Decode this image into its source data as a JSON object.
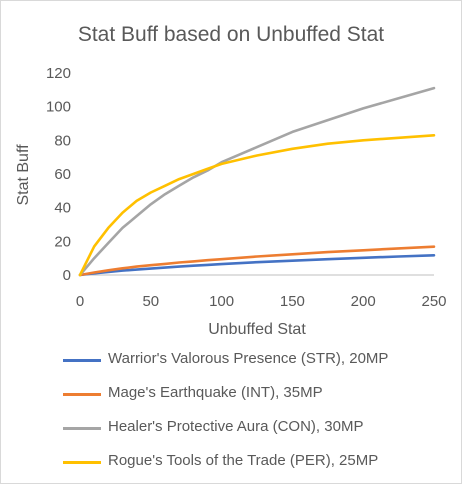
{
  "chart_data": {
    "type": "line",
    "title": "Stat Buff based on Unbuffed Stat",
    "xlabel": "Unbuffed Stat",
    "ylabel": "Stat Buff",
    "xlim": [
      0,
      250
    ],
    "ylim": [
      0,
      120
    ],
    "xticks": [
      0,
      50,
      100,
      150,
      200,
      250
    ],
    "yticks": [
      0,
      20,
      40,
      60,
      80,
      100,
      120
    ],
    "grid": false,
    "legend": "bottom",
    "x": [
      0,
      10,
      20,
      30,
      40,
      50,
      60,
      70,
      80,
      90,
      100,
      125,
      150,
      175,
      200,
      225,
      250
    ],
    "series": [
      {
        "name": "Warrior's Valorous Presence (STR), 20MP",
        "color": "#4472c4",
        "values": [
          0,
          1,
          1.8,
          2.6,
          3.2,
          3.8,
          4.4,
          5,
          5.5,
          6,
          6.5,
          7.6,
          8.5,
          9.4,
          10.2,
          11,
          11.7
        ]
      },
      {
        "name": "Mage's Earthquake (INT), 35MP",
        "color": "#ed7d31",
        "values": [
          0,
          1.5,
          2.8,
          4,
          5,
          5.8,
          6.6,
          7.4,
          8.1,
          8.8,
          9.4,
          11,
          12.3,
          13.6,
          14.7,
          15.8,
          16.8
        ]
      },
      {
        "name": "Healer's Protective Aura (CON), 30MP",
        "color": "#a5a5a5",
        "values": [
          0,
          10,
          19,
          28,
          35,
          42,
          48,
          53,
          58,
          62,
          67,
          76,
          85,
          92,
          99,
          105,
          111
        ]
      },
      {
        "name": "Rogue's Tools of the Trade (PER), 25MP",
        "color": "#ffc000",
        "values": [
          0,
          17,
          28,
          37,
          44,
          49,
          53,
          57,
          60,
          63,
          66,
          71,
          75,
          78,
          80,
          81.5,
          83
        ]
      }
    ]
  }
}
